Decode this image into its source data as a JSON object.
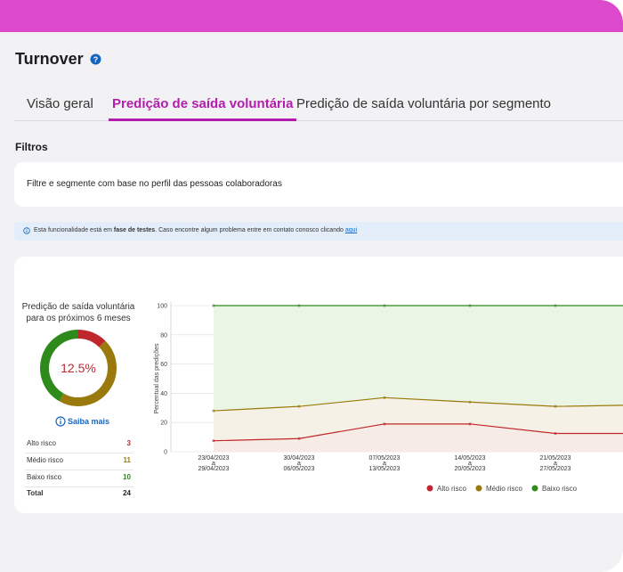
{
  "header": {
    "title": "Turnover",
    "help_icon": "?"
  },
  "tabs": {
    "items": [
      "Visão geral",
      "Predição de saída voluntária",
      "Predição de saída voluntária por segmento"
    ],
    "active": 1
  },
  "filters": {
    "title": "Filtros",
    "text": "Filtre e segmente com base no perfil das pessoas colaboradoras"
  },
  "notice": {
    "prefix": "Esta funcionalidade está em ",
    "bold": "fase de testes",
    "middle": ". Caso encontre algum problema entre em contato conosco clicando ",
    "link": "aqui"
  },
  "summary": {
    "title": "Predição de saída voluntária para os próximos 6 meses",
    "center": {
      "value": 12.5,
      "label": "12.5%"
    },
    "link": "Saiba mais",
    "rows": [
      {
        "name": "Alto risco",
        "value": 3,
        "color": "#c0272d"
      },
      {
        "name": "Médio risco",
        "value": 11,
        "color": "#9a7a0c"
      },
      {
        "name": "Baixo risco",
        "value": 10,
        "color": "#2f8a1c"
      }
    ],
    "total": {
      "name": "Total",
      "value": 24
    }
  },
  "chart_data": {
    "type": "line",
    "y_label": "Percentual das predições",
    "categories": [
      "23/04/2023\na\n29/04/2023",
      "30/04/2023\na\n06/05/2023",
      "07/05/2023\na\n13/05/2023",
      "14/05/2023\na\n20/05/2023",
      "21/05/2023\na\n27/05/2023",
      null
    ],
    "series": [
      {
        "name": "Alto risco",
        "color": "#c0272d",
        "fill": "#f7ebe6",
        "values": [
          7.5,
          9,
          19,
          19,
          12.5,
          12.5
        ]
      },
      {
        "name": "Médio risco",
        "color": "#9a7a0c",
        "fill": "#f6f1e6",
        "values": [
          28,
          31,
          37,
          34,
          31,
          32
        ]
      },
      {
        "name": "Baixo risco",
        "color": "#2f8a1c",
        "fill": "#eaf5e6",
        "values": [
          100,
          100,
          100,
          100,
          100,
          100
        ]
      }
    ],
    "ylim": [
      0,
      100
    ],
    "yticks": [
      0,
      20,
      40,
      60,
      80,
      100
    ],
    "grid": true
  }
}
